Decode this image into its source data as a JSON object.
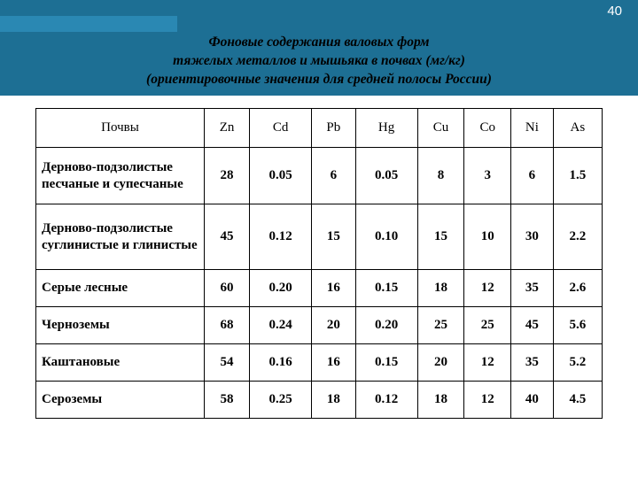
{
  "page_number": "40",
  "title_l1": "Фоновые содержания валовых форм",
  "title_l2": "тяжелых металлов и мышьяка в почвах (мг/кг)",
  "title_l3": "(ориентировочные значения для средней полосы России)",
  "columns": [
    "Почвы",
    "Zn",
    "Cd",
    "Pb",
    "Hg",
    "Cu",
    "Co",
    "Ni",
    "As"
  ],
  "rows": [
    {
      "label": "Дерново-подзолистые песчаные и супесчаные",
      "cells": [
        "28",
        "0.05",
        "6",
        "0.05",
        "8",
        "3",
        "6",
        "1.5"
      ],
      "h": "tall"
    },
    {
      "label": "Дерново-подзолистые суглинистые и глинистые",
      "cells": [
        "45",
        "0.12",
        "15",
        "0.10",
        "15",
        "10",
        "30",
        "2.2"
      ],
      "h": "taller"
    },
    {
      "label": "Серые лесные",
      "cells": [
        "60",
        "0.20",
        "16",
        "0.15",
        "18",
        "12",
        "35",
        "2.6"
      ],
      "h": "short"
    },
    {
      "label": "Черноземы",
      "cells": [
        "68",
        "0.24",
        "20",
        "0.20",
        "25",
        "25",
        "45",
        "5.6"
      ],
      "h": "short"
    },
    {
      "label": "Каштановые",
      "cells": [
        "54",
        "0.16",
        "16",
        "0.15",
        "20",
        "12",
        "35",
        "5.2"
      ],
      "h": "short"
    },
    {
      "label": "Сероземы",
      "cells": [
        "58",
        "0.25",
        "18",
        "0.12",
        "18",
        "12",
        "40",
        "4.5"
      ],
      "h": "short"
    }
  ],
  "colors": {
    "header_band": "#1d6f94",
    "header_light": "#2a88b3",
    "border": "#000000",
    "text": "#000000",
    "page_num": "#ffffff",
    "bg": "#ffffff"
  }
}
